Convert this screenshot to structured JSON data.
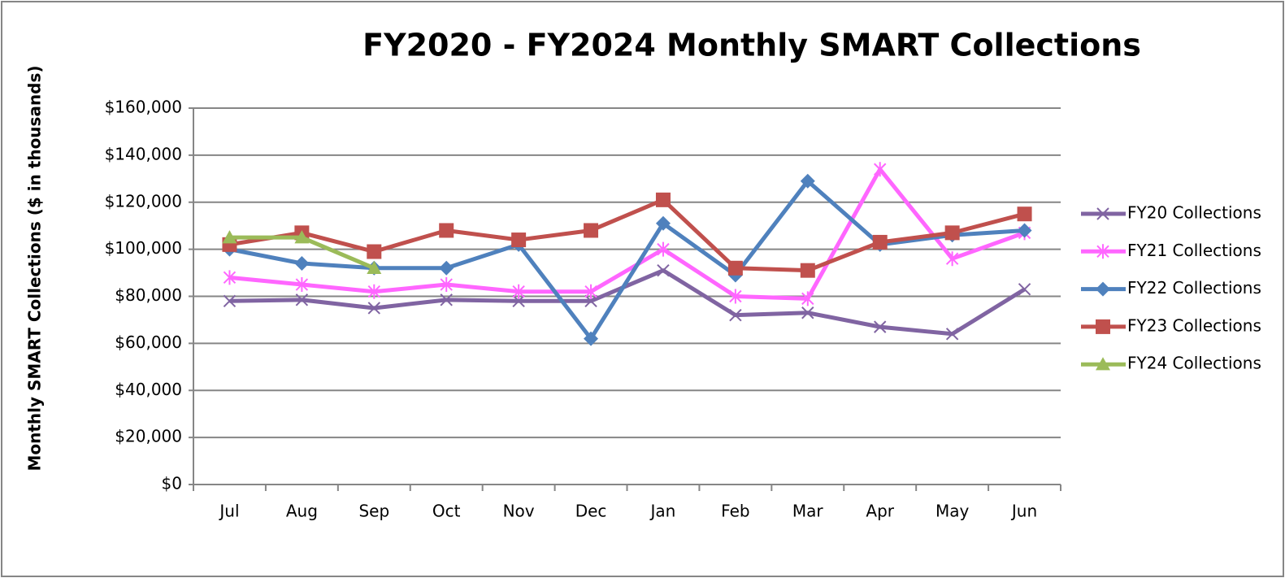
{
  "chart_data": {
    "type": "line",
    "title": "FY2020 - FY2024 Monthly SMART Collections",
    "y_label": "Monthly SMART Collections ($ in thousands)",
    "categories": [
      "Jul",
      "Aug",
      "Sep",
      "Oct",
      "Nov",
      "Dec",
      "Jan",
      "Feb",
      "Mar",
      "Apr",
      "May",
      "Jun"
    ],
    "series": [
      {
        "name": "FY20 Collections",
        "color": "#8064a2",
        "marker": "x",
        "values": [
          78000,
          78500,
          75000,
          78500,
          78000,
          78000,
          91000,
          72000,
          73000,
          67000,
          64000,
          83000
        ]
      },
      {
        "name": "FY21 Collections",
        "color": "#ff66ff",
        "marker": "asterisk",
        "values": [
          88000,
          85000,
          82000,
          85000,
          82000,
          82000,
          100000,
          80000,
          79000,
          134000,
          96000,
          107000
        ]
      },
      {
        "name": "FY22 Collections",
        "color": "#4f81bd",
        "marker": "diamond",
        "values": [
          100000,
          94000,
          92000,
          92000,
          102000,
          62000,
          111000,
          89000,
          129000,
          102000,
          106000,
          108000
        ]
      },
      {
        "name": "FY23 Collections",
        "color": "#c0504d",
        "marker": "square",
        "values": [
          102000,
          107000,
          99000,
          108000,
          104000,
          108000,
          121000,
          92000,
          91000,
          103000,
          107000,
          115000
        ]
      },
      {
        "name": "FY24 Collections",
        "color": "#9bbb59",
        "marker": "triangle",
        "values": [
          105000,
          105000,
          92000,
          null,
          null,
          null,
          null,
          null,
          null,
          null,
          null,
          null
        ]
      }
    ],
    "ylim": [
      0,
      160000
    ],
    "yticks": [
      {
        "value": 0,
        "label": "$0"
      },
      {
        "value": 20000,
        "label": "$20,000"
      },
      {
        "value": 40000,
        "label": "$40,000"
      },
      {
        "value": 60000,
        "label": "$60,000"
      },
      {
        "value": 80000,
        "label": "$80,000"
      },
      {
        "value": 100000,
        "label": "$100,000"
      },
      {
        "value": 120000,
        "label": "$120,000"
      },
      {
        "value": 140000,
        "label": "$140,000"
      },
      {
        "value": 160000,
        "label": "$160,000"
      }
    ],
    "grid": true,
    "legend": "right"
  }
}
